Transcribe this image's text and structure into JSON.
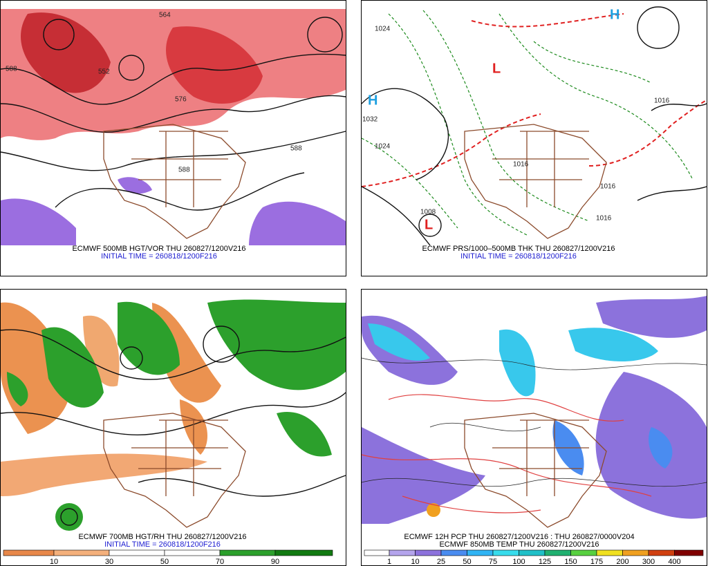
{
  "panels": [
    {
      "title": "ECMWF 500MB HGT/VOR THU 260827/1200V216",
      "subtitle": "INITIAL TIME = 260818/1200F216",
      "labels": [
        "564",
        "588",
        "552",
        "576",
        "588",
        "588"
      ]
    },
    {
      "title": "ECMWF PRS/1000–500MB THK THU 260827/1200V216",
      "subtitle": "INITIAL TIME = 260818/1200F216",
      "labels": [
        "1024",
        "H",
        "1032",
        "1024",
        "1016",
        "1016",
        "1008",
        "L",
        "L",
        "H",
        "1016",
        "1016"
      ]
    },
    {
      "title": "ECMWF 700MB HGT/RH THU 260827/1200V216",
      "subtitle": "INITIAL TIME = 260818/1200F216",
      "colorbar": {
        "ticks": [
          10,
          30,
          50,
          70,
          90
        ],
        "colors": [
          "#e8884a",
          "#f4b07c",
          "#ffffff",
          "#ffffff",
          "#2ca02c",
          "#127a12"
        ]
      }
    },
    {
      "title": "ECMWF 12H PCP THU 260827/1200V216 : THU 260827/0000V204",
      "subtitle": "ECMWF 850MB TEMP THU 260827/1200V216",
      "colorbar": {
        "ticks": [
          1,
          10,
          25,
          50,
          75,
          100,
          125,
          150,
          175,
          200,
          300,
          400
        ],
        "colors": [
          "#ffffff",
          "#b4a4ec",
          "#8c72dc",
          "#4a8cf0",
          "#30b4f4",
          "#38dcec",
          "#20c0c8",
          "#20b070",
          "#58d040",
          "#f0e020",
          "#f0a020",
          "#d04010",
          "#800000"
        ]
      }
    }
  ]
}
